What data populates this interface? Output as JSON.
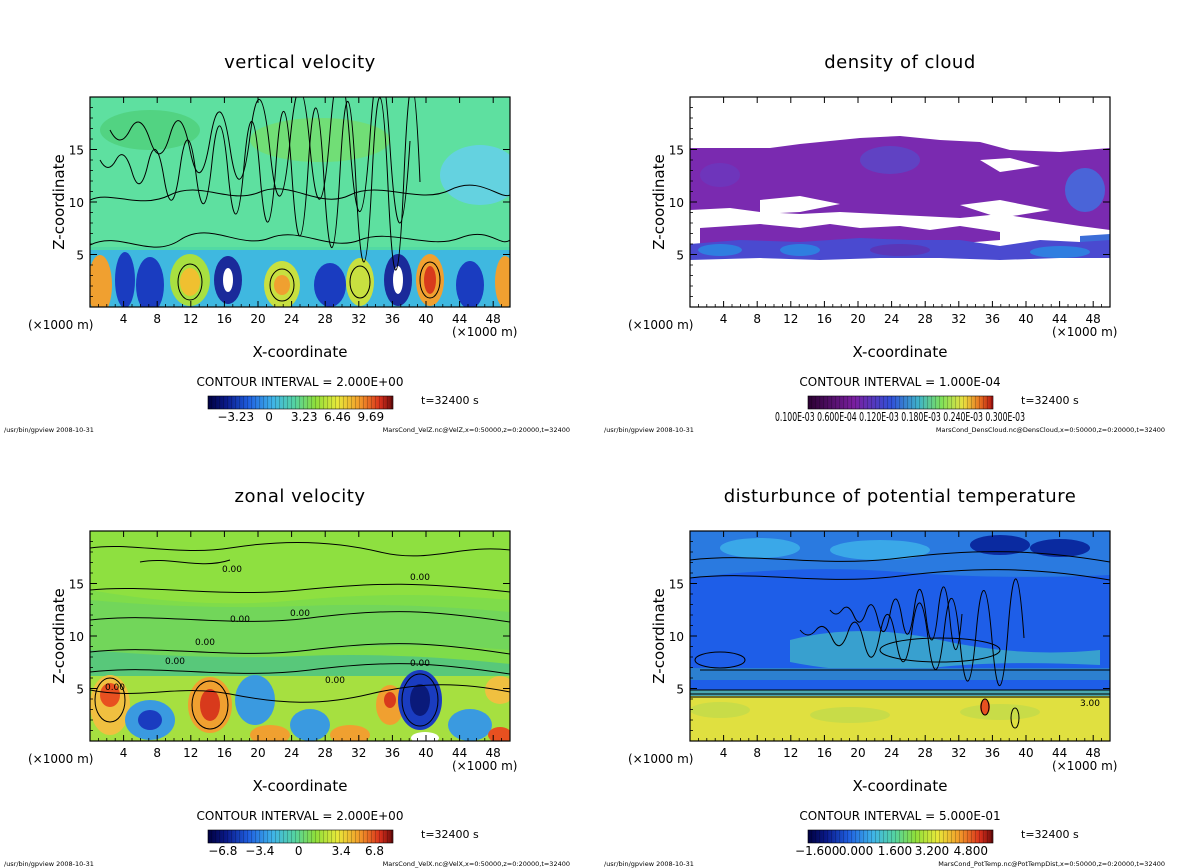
{
  "colors": {
    "background": "#ffffff",
    "frame": "#000000"
  },
  "chart_data": [
    {
      "id": "p1",
      "type": "heatmap",
      "title": "vertical velocity",
      "xlabel": "X-coordinate",
      "ylabel": "Z-coordinate",
      "x_unit": "(×1000 m)",
      "xlim": [
        0,
        50
      ],
      "ylim": [
        0,
        20
      ],
      "x_ticks": [
        "4",
        "8",
        "12",
        "16",
        "20",
        "24",
        "28",
        "32",
        "36",
        "40",
        "44",
        "48"
      ],
      "y_ticks": [
        "5",
        "10",
        "15"
      ],
      "contour_interval": "CONTOUR INTERVAL = 2.000E+00",
      "colorbar_labels": [
        "−3.23",
        "0",
        "3.23",
        "6.46",
        "9.69"
      ],
      "time_label": "t=32400 s",
      "footer_left": "/usr/bin/gpview  2008-10-31",
      "footer_right": "MarsCond_VelZ.nc@VelZ,x=0:50000,z=0:20000,t=32400",
      "contour_labels": []
    },
    {
      "id": "p2",
      "type": "heatmap",
      "title": "density of cloud",
      "xlabel": "X-coordinate",
      "ylabel": "Z-coordinate",
      "x_unit": "(×1000 m)",
      "xlim": [
        0,
        50
      ],
      "ylim": [
        0,
        20
      ],
      "x_ticks": [
        "4",
        "8",
        "12",
        "16",
        "20",
        "24",
        "28",
        "32",
        "36",
        "40",
        "44",
        "48"
      ],
      "y_ticks": [
        "5",
        "10",
        "15"
      ],
      "contour_interval": "CONTOUR INTERVAL = 1.000E-04",
      "colorbar_labels": [
        "0.100E-03 0.600E-04 0.120E-03 0.180E-03 0.240E-03 0.300E-03"
      ],
      "time_label": "t=32400 s",
      "footer_left": "/usr/bin/gpview  2008-10-31",
      "footer_right": "MarsCond_DensCloud.nc@DensCloud,x=0:50000,z=0:20000,t=32400",
      "contour_labels": []
    },
    {
      "id": "p3",
      "type": "heatmap",
      "title": "zonal velocity",
      "xlabel": "X-coordinate",
      "ylabel": "Z-coordinate",
      "x_unit": "(×1000 m)",
      "xlim": [
        0,
        50
      ],
      "ylim": [
        0,
        20
      ],
      "x_ticks": [
        "4",
        "8",
        "12",
        "16",
        "20",
        "24",
        "28",
        "32",
        "36",
        "40",
        "44",
        "48"
      ],
      "y_ticks": [
        "5",
        "10",
        "15"
      ],
      "contour_interval": "CONTOUR INTERVAL = 2.000E+00",
      "colorbar_labels": [
        "−6.8",
        "−3.4",
        "0",
        "3.4",
        "6.8"
      ],
      "time_label": "t=32400 s",
      "footer_left": "/usr/bin/gpview  2008-10-31",
      "footer_right": "MarsCond_VelX.nc@VelX,x=0:50000,z=0:20000,t=32400",
      "contour_labels": [
        "0.00",
        "0.00",
        "0.00",
        "0.00",
        "0.00",
        "0.00",
        "0.00",
        "0.00",
        "0.00"
      ]
    },
    {
      "id": "p4",
      "type": "heatmap",
      "title": "disturbunce of potential temperature",
      "xlabel": "X-coordinate",
      "ylabel": "Z-coordinate",
      "x_unit": "(×1000 m)",
      "xlim": [
        0,
        50
      ],
      "ylim": [
        0,
        20
      ],
      "x_ticks": [
        "4",
        "8",
        "12",
        "16",
        "20",
        "24",
        "28",
        "32",
        "36",
        "40",
        "44",
        "48"
      ],
      "y_ticks": [
        "5",
        "10",
        "15"
      ],
      "contour_interval": "CONTOUR INTERVAL = 5.000E-01",
      "colorbar_labels": [
        "−1.600",
        "0.000",
        "1.600",
        "3.200",
        "4.800"
      ],
      "time_label": "t=32400 s",
      "footer_left": "/usr/bin/gpview  2008-10-31",
      "footer_right": "MarsCond_PotTemp.nc@PotTempDist,x=0:50000,z=0:20000,t=32400",
      "contour_labels": [
        "3.00"
      ]
    }
  ]
}
